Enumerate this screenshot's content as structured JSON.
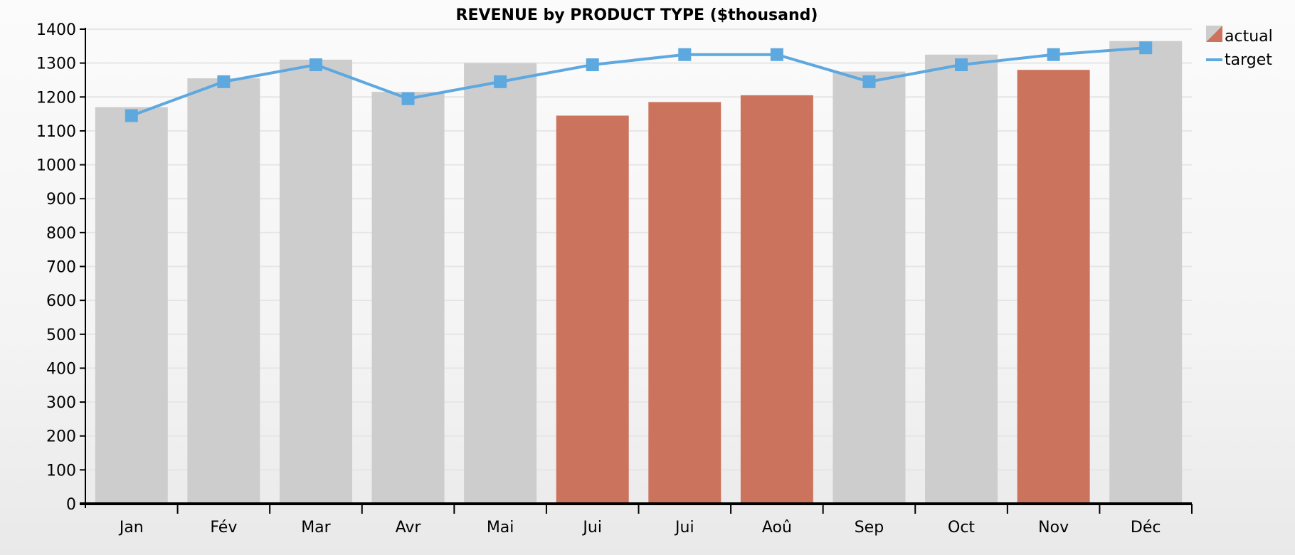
{
  "chart_data": {
    "type": "bar",
    "title": "REVENUE by PRODUCT TYPE ($thousand)",
    "xlabel": "",
    "ylabel": "",
    "ylim": [
      0,
      1400
    ],
    "yticks": [
      0,
      100,
      200,
      300,
      400,
      500,
      600,
      700,
      800,
      900,
      1000,
      1100,
      1200,
      1300,
      1400
    ],
    "grid": true,
    "legend_position": "top-right",
    "categories": [
      "Jan",
      "Fév",
      "Mar",
      "Avr",
      "Mai",
      "Jui",
      "Jui",
      "Aoû",
      "Sep",
      "Oct",
      "Nov",
      "Déc"
    ],
    "series": [
      {
        "name": "actual",
        "type": "bar",
        "values": [
          1170,
          1255,
          1310,
          1215,
          1300,
          1145,
          1185,
          1205,
          1275,
          1325,
          1280,
          1365
        ]
      },
      {
        "name": "target",
        "type": "line",
        "values": [
          1145,
          1245,
          1295,
          1195,
          1245,
          1295,
          1325,
          1325,
          1245,
          1295,
          1325,
          1345
        ]
      }
    ],
    "colors": {
      "above_target": "#cdcdcd",
      "below_target": "#cc735e",
      "target": "#5ea8e0"
    }
  }
}
